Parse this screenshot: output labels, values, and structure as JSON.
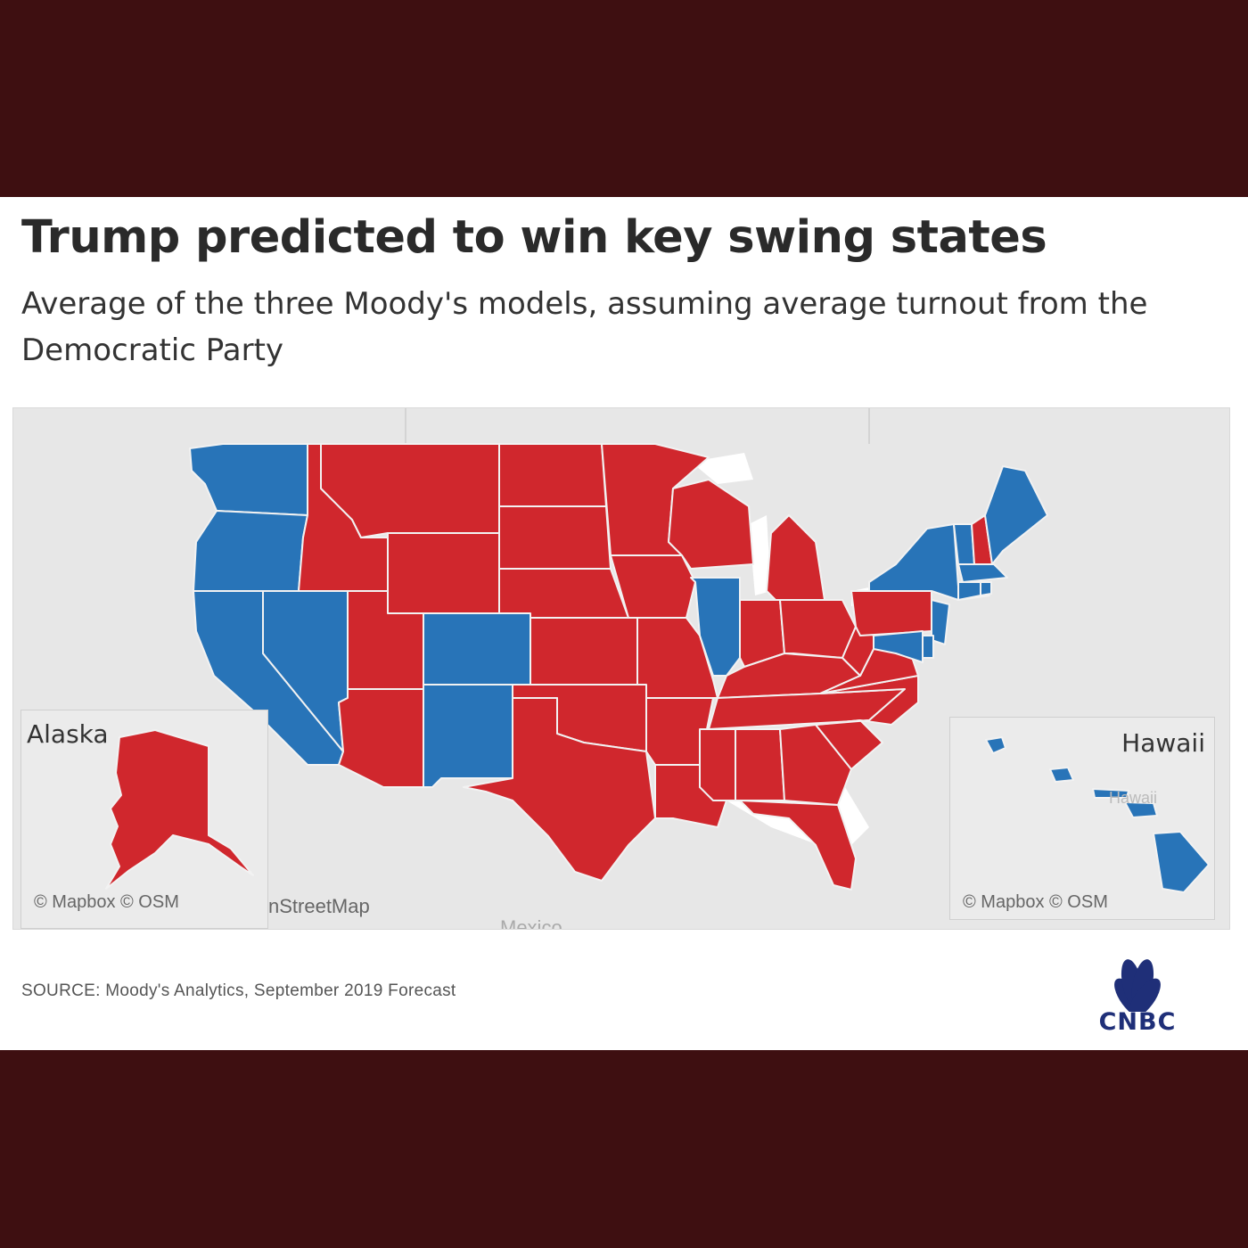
{
  "title": "Trump predicted to win key swing states",
  "subtitle": "Average of the three Moody's models, assuming average turnout from the Democratic Party",
  "map": {
    "colors": {
      "republican": "#d0272d",
      "democratic": "#2874b8",
      "land": "#e7e7e7",
      "water": "#ffffff"
    },
    "states": {
      "WA": "democratic",
      "OR": "democratic",
      "CA": "democratic",
      "NV": "democratic",
      "ID": "republican",
      "MT": "republican",
      "WY": "republican",
      "UT": "republican",
      "AZ": "republican",
      "CO": "democratic",
      "NM": "democratic",
      "ND": "republican",
      "SD": "republican",
      "NE": "republican",
      "KS": "republican",
      "OK": "republican",
      "TX": "republican",
      "MN": "republican",
      "IA": "republican",
      "MO": "republican",
      "AR": "republican",
      "LA": "republican",
      "WI": "republican",
      "IL": "democratic",
      "MI": "republican",
      "IN": "republican",
      "OH": "republican",
      "KY": "republican",
      "TN": "republican",
      "MS": "republican",
      "AL": "republican",
      "GA": "republican",
      "FL": "republican",
      "SC": "republican",
      "NC": "republican",
      "VA": "republican",
      "WV": "republican",
      "PA": "republican",
      "NY": "democratic",
      "VT": "democratic",
      "NH": "republican",
      "ME": "democratic",
      "MA": "democratic",
      "CT": "democratic",
      "RI": "democratic",
      "NJ": "democratic",
      "DE": "democratic",
      "MD": "democratic",
      "AK": "republican",
      "HI": "democratic"
    },
    "insets": {
      "alaska": {
        "label": "Alaska",
        "attribution": "© Mapbox © OSM"
      },
      "hawaii": {
        "label": "Hawaii",
        "attribution": "© Mapbox © OSM",
        "faded_label": "Hawaii"
      }
    },
    "background_labels": {
      "osm_fragment": "nStreetMap",
      "mexico": "Mexico"
    }
  },
  "source": "SOURCE: Moody's Analytics, September 2019 Forecast",
  "logo": {
    "text": "CNBC",
    "icon": "peacock-icon"
  }
}
